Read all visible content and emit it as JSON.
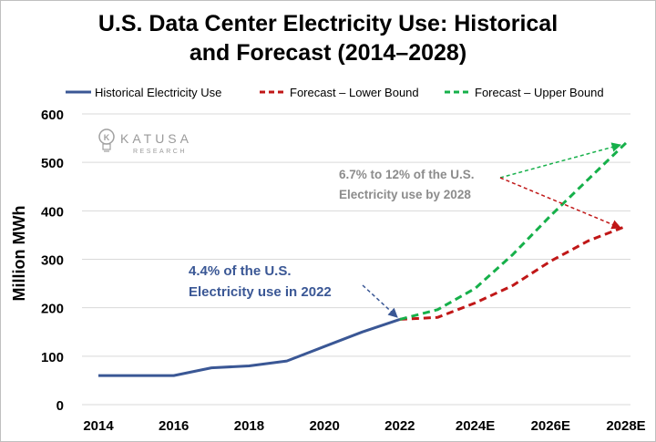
{
  "chart_data": {
    "type": "line",
    "title_line1": "U.S. Data Center Electricity Use: Historical",
    "title_line2": "and Forecast (2014–2028)",
    "ylabel": "Million MWh",
    "xlabel": "",
    "ylim": [
      0,
      600
    ],
    "yticks": [
      0,
      100,
      200,
      300,
      400,
      500,
      600
    ],
    "xlim": [
      2014,
      2028
    ],
    "xtick_values": [
      2014,
      2016,
      2018,
      2020,
      2022,
      2024,
      2026,
      2028
    ],
    "xtick_labels": [
      "2014",
      "2016",
      "2018",
      "2020",
      "2022",
      "2024E",
      "2026E",
      "2028E"
    ],
    "grid": true,
    "legend_position": "top",
    "series": [
      {
        "name": "Historical Electricity Use",
        "color": "#3a5795",
        "dash": "solid",
        "x": [
          2014,
          2015,
          2016,
          2017,
          2018,
          2019,
          2020,
          2021,
          2022
        ],
        "y": [
          60,
          60,
          60,
          76,
          80,
          90,
          120,
          150,
          176
        ]
      },
      {
        "name": "Forecast – Lower Bound",
        "color": "#c01717",
        "dash": "dashed",
        "x": [
          2022,
          2023,
          2024,
          2025,
          2026,
          2027,
          2028
        ],
        "y": [
          176,
          180,
          210,
          246,
          296,
          338,
          368
        ]
      },
      {
        "name": "Forecast – Upper Bound",
        "color": "#16b04a",
        "dash": "dashed",
        "x": [
          2022,
          2023,
          2024,
          2025,
          2026,
          2027,
          2028
        ],
        "y": [
          176,
          196,
          240,
          310,
          390,
          465,
          540
        ]
      }
    ],
    "annotations": [
      {
        "id": "a2022",
        "line1": "4.4% of the U.S.",
        "line2": "Electricity use in 2022",
        "color": "#3a5795"
      },
      {
        "id": "a2028",
        "line1": "6.7%  to 12% of the U.S.",
        "line2": "Electricity use by 2028",
        "color": "#8c8c8c"
      }
    ],
    "logo": {
      "name": "KATUSA",
      "sub": "RESEARCH"
    }
  }
}
